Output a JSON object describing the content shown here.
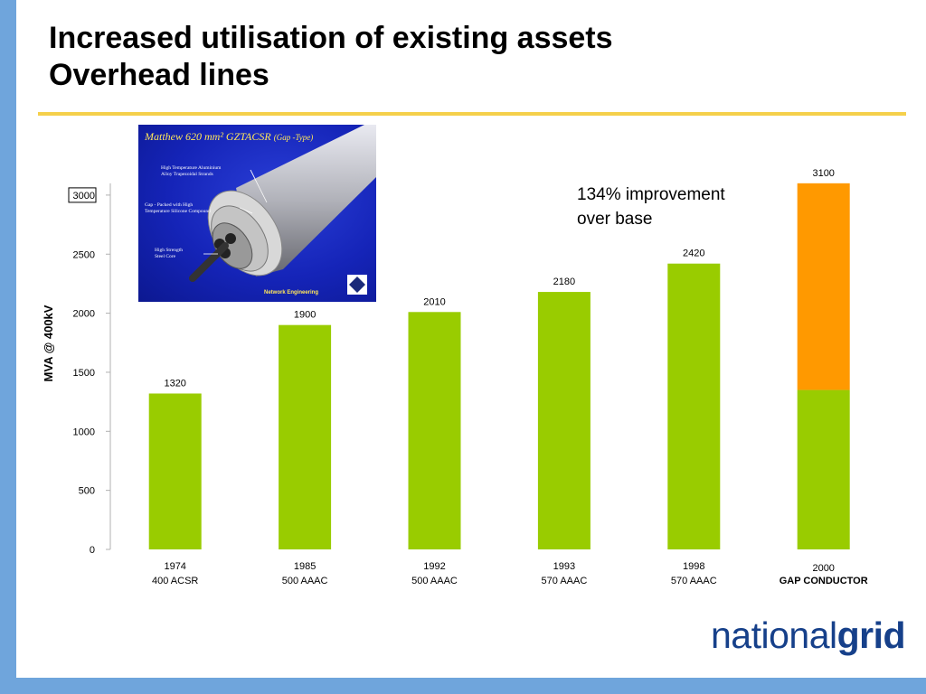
{
  "slide": {
    "title_line1": "Increased utilisation of existing assets",
    "title_line2": "Overhead lines",
    "annotation_line1": "134% improvement",
    "annotation_line2": "over base"
  },
  "inset": {
    "title_main": "Matthew 620 mm² GZTACSR",
    "title_sub": "(Gap -Type)",
    "label_strands_1": "High Temperature Aluminium",
    "label_strands_2": "Alloy Trapezoidal Strands",
    "label_gap_1": "Gap - Packed with High",
    "label_gap_2": "Temperature Silicone Compound",
    "label_core_1": "High Strength",
    "label_core_2": "Steel Core",
    "footer": "Network Engineering"
  },
  "logo": {
    "light": "national",
    "bold": "grid",
    "color": "#16408a"
  },
  "colors": {
    "bar_green": "#99cc00",
    "bar_orange": "#ff9900",
    "band_blue": "#6fa5dc",
    "rule_yellow": "#f5d04b"
  },
  "chart_data": {
    "type": "bar",
    "ylabel": "MVA @ 400kV",
    "ylim": [
      0,
      3100
    ],
    "yticks": [
      0,
      500,
      1000,
      1500,
      2000,
      2500,
      3000
    ],
    "highlighted_tick": 3000,
    "grid": false,
    "categories": [
      {
        "year": "1974",
        "conductor": "400 ACSR",
        "bold": false
      },
      {
        "year": "1985",
        "conductor": "500 AAAC",
        "bold": false
      },
      {
        "year": "1992",
        "conductor": "500 AAAC",
        "bold": false
      },
      {
        "year": "1993",
        "conductor": "570 AAAC",
        "bold": false
      },
      {
        "year": "1998",
        "conductor": "570 AAAC",
        "bold": false
      },
      {
        "year": "2000",
        "conductor": "GAP CONDUCTOR",
        "bold": true
      }
    ],
    "series": [
      {
        "color": "#99cc00",
        "values": [
          1320,
          1900,
          2010,
          2180,
          2420,
          1350
        ]
      },
      {
        "color": "#ff9900",
        "values": [
          0,
          0,
          0,
          0,
          0,
          1750
        ]
      }
    ],
    "data_labels": [
      "1320",
      "1900",
      "2010",
      "2180",
      "2420",
      "3100"
    ]
  }
}
